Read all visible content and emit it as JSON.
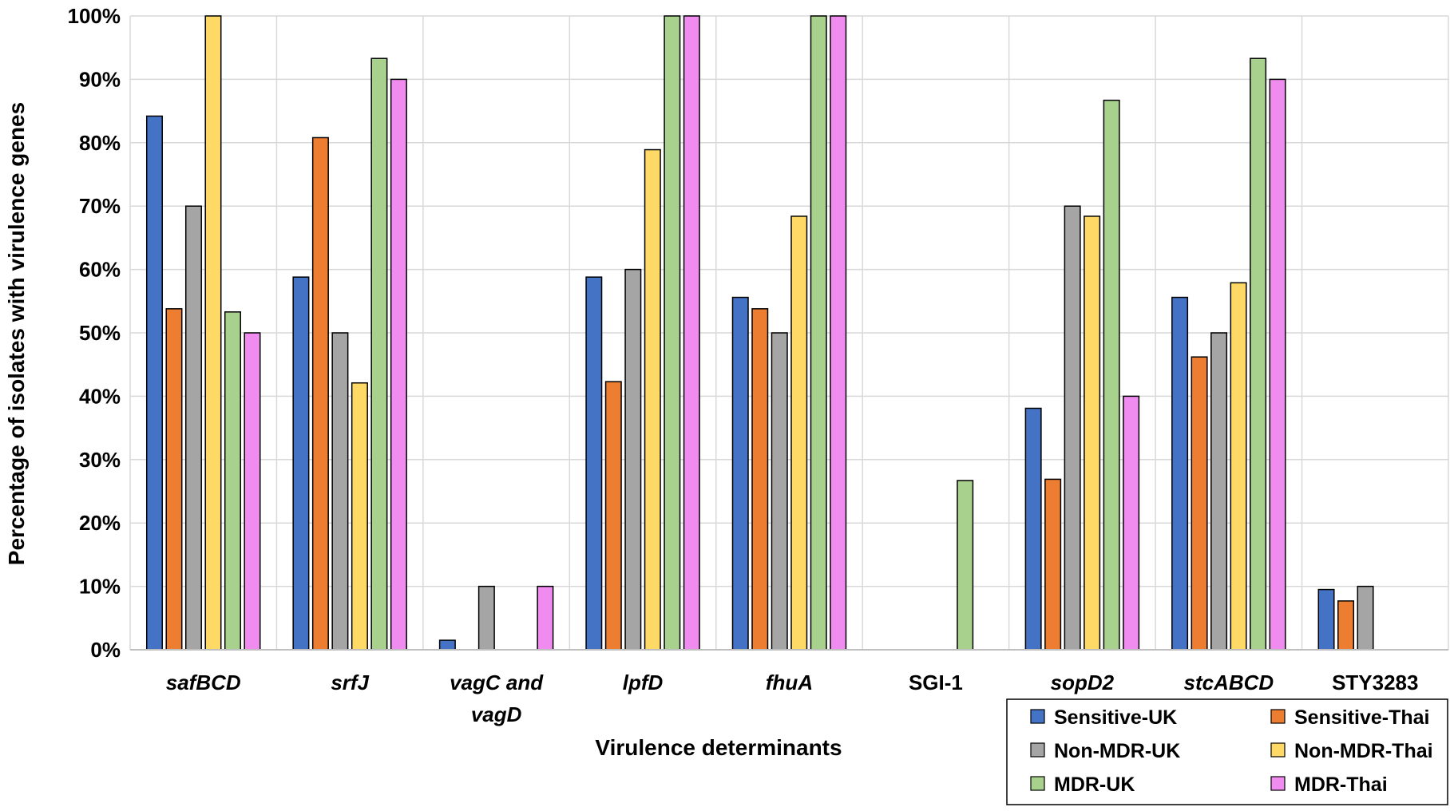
{
  "chart_data": {
    "type": "bar",
    "title": "",
    "xlabel": "Virulence determinants",
    "ylabel": "Percentage of isolates with virulence genes",
    "ylim": [
      0,
      100
    ],
    "yticks": [
      "0%",
      "10%",
      "20%",
      "30%",
      "40%",
      "50%",
      "60%",
      "70%",
      "80%",
      "90%",
      "100%"
    ],
    "grid": true,
    "legend_position": "bottom-right",
    "categories": [
      {
        "lines": [
          "safBCD"
        ],
        "italic": true
      },
      {
        "lines": [
          "srfJ"
        ],
        "italic": true
      },
      {
        "lines": [
          "vagC and",
          "vagD"
        ],
        "italic": true
      },
      {
        "lines": [
          "lpfD"
        ],
        "italic": true
      },
      {
        "lines": [
          "fhuA"
        ],
        "italic": true
      },
      {
        "lines": [
          "SGI-1"
        ],
        "italic": false
      },
      {
        "lines": [
          "sopD2"
        ],
        "italic": true
      },
      {
        "lines": [
          "stcABCD"
        ],
        "italic": true
      },
      {
        "lines": [
          "STY3283"
        ],
        "italic": false
      }
    ],
    "series": [
      {
        "name": "Sensitive-UK",
        "color": "#4472C4",
        "values": [
          84.2,
          58.8,
          1.5,
          58.8,
          55.6,
          0,
          38.1,
          55.6,
          9.5
        ]
      },
      {
        "name": "Sensitive-Thai",
        "color": "#ED7D31",
        "values": [
          53.8,
          80.8,
          0,
          42.3,
          53.8,
          0,
          26.9,
          46.2,
          7.7
        ]
      },
      {
        "name": "Non-MDR-UK",
        "color": "#A5A5A5",
        "values": [
          70,
          50,
          10,
          60,
          50,
          0,
          70,
          50,
          10
        ]
      },
      {
        "name": "Non-MDR-Thai",
        "color": "#FFD966",
        "values": [
          100,
          42.1,
          0,
          78.9,
          68.4,
          0,
          68.4,
          57.9,
          0
        ]
      },
      {
        "name": "MDR-UK",
        "color": "#A9D18E",
        "values": [
          53.3,
          93.3,
          0,
          100,
          100,
          26.7,
          86.7,
          93.3,
          0
        ]
      },
      {
        "name": "MDR-Thai",
        "color": "#F08CF0",
        "values": [
          50,
          90,
          10,
          100,
          100,
          0,
          40,
          90,
          0
        ]
      }
    ]
  }
}
